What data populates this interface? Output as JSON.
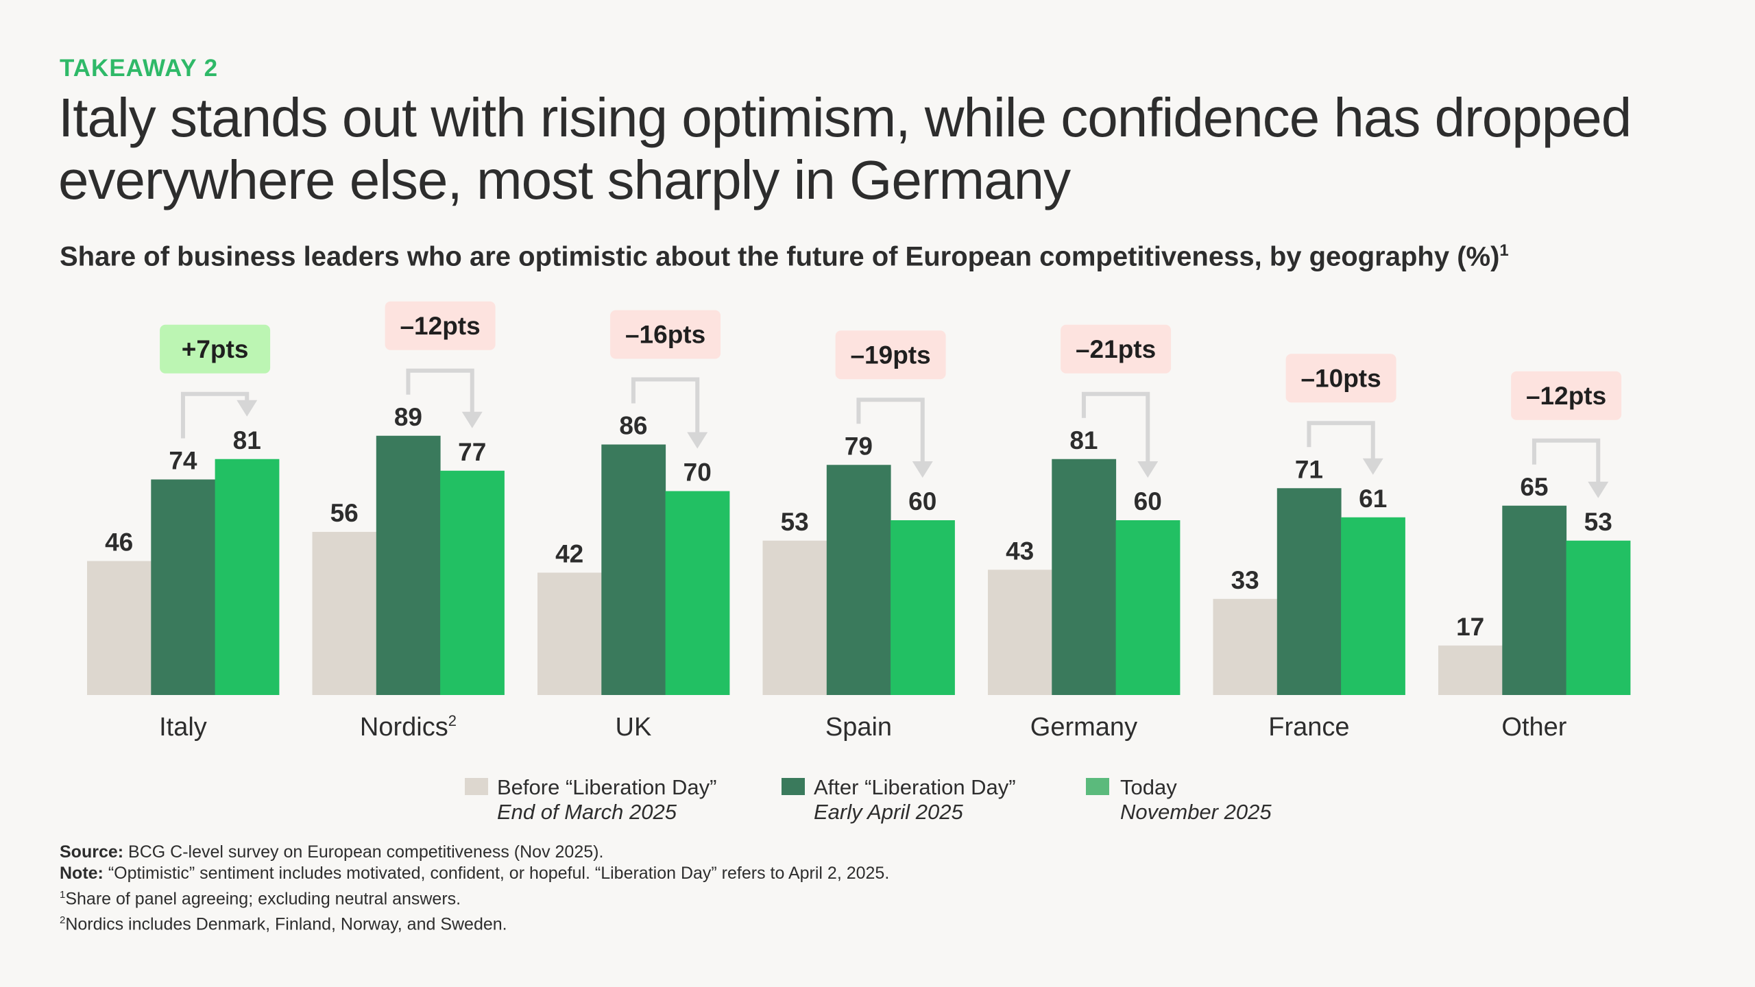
{
  "header": {
    "kicker": "TAKEAWAY 2",
    "title": "Italy stands out with rising optimism, while confidence has dropped everywhere else, most sharply in Germany",
    "subtitle": "Share of business leaders who are optimistic about the future of European competitiveness, by geography (%)",
    "subtitle_footnote_ref": "1"
  },
  "colors": {
    "before": "#ddd7cf",
    "after": "#3a7a5c",
    "today": "#22c063",
    "today_legend": "#5bba7c",
    "badge_positive": "#bcf5b3",
    "badge_negative": "#fde3df",
    "arrow": "#d6d6d6",
    "kicker": "#2fb968"
  },
  "chart_data": {
    "type": "bar",
    "title": "Share of business leaders who are optimistic about the future of European competitiveness, by geography (%)",
    "xlabel": "",
    "ylabel": "",
    "ylim": [
      0,
      100
    ],
    "grid": false,
    "legend_position": "bottom-center",
    "categories": [
      "Italy",
      "Nordics",
      "UK",
      "Spain",
      "Germany",
      "France",
      "Other"
    ],
    "category_footnote_refs": [
      "",
      "2",
      "",
      "",
      "",
      "",
      ""
    ],
    "series": [
      {
        "name": "Before “Liberation Day”",
        "subtitle": "End of March 2025",
        "values": [
          46,
          56,
          42,
          53,
          43,
          33,
          17
        ]
      },
      {
        "name": "After “Liberation Day”",
        "subtitle": "Early April 2025",
        "values": [
          74,
          89,
          86,
          79,
          81,
          71,
          65
        ]
      },
      {
        "name": "Today",
        "subtitle": "November 2025",
        "values": [
          81,
          77,
          70,
          60,
          60,
          61,
          53
        ]
      }
    ],
    "annotations": [
      {
        "category": "Italy",
        "label": "+7pts",
        "change": 7,
        "from_series": "After",
        "to_series": "Today"
      },
      {
        "category": "Nordics",
        "label": "–12pts",
        "change": -12,
        "from_series": "After",
        "to_series": "Today"
      },
      {
        "category": "UK",
        "label": "–16pts",
        "change": -16,
        "from_series": "After",
        "to_series": "Today"
      },
      {
        "category": "Spain",
        "label": "–19pts",
        "change": -19,
        "from_series": "After",
        "to_series": "Today"
      },
      {
        "category": "Germany",
        "label": "–21pts",
        "change": -21,
        "from_series": "After",
        "to_series": "Today"
      },
      {
        "category": "France",
        "label": "–10pts",
        "change": -10,
        "from_series": "After",
        "to_series": "Today"
      },
      {
        "category": "Other",
        "label": "–12pts",
        "change": -12,
        "from_series": "After",
        "to_series": "Today"
      }
    ]
  },
  "legend": [
    {
      "label": "Before “Liberation Day”",
      "sub": "End of March 2025"
    },
    {
      "label": "After “Liberation Day”",
      "sub": "Early April 2025"
    },
    {
      "label": "Today",
      "sub": "November 2025"
    }
  ],
  "footnotes": {
    "source_label": "Source:",
    "source_text": " BCG C-level survey on European competitiveness (Nov 2025).",
    "note_label": "Note:",
    "note_text": " “Optimistic” sentiment includes motivated, confident, or hopeful. “Liberation Day” refers to April 2, 2025.",
    "fn1_ref": "1",
    "fn1_text": "Share of panel agreeing; excluding neutral answers.",
    "fn2_ref": "2",
    "fn2_text": "Nordics includes Denmark, Finland, Norway, and Sweden."
  }
}
